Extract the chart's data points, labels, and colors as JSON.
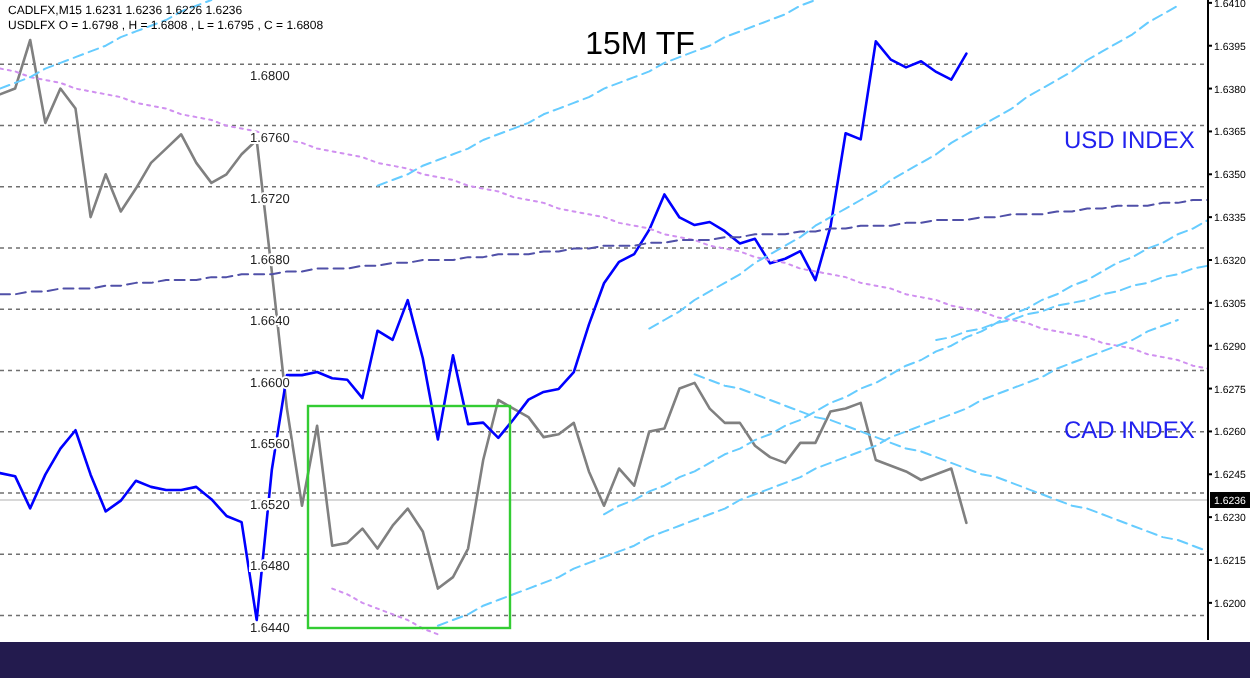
{
  "chart_data": {
    "type": "line",
    "title": "15M TF",
    "annotations": [
      "CADLFX,M15  1.6231 1.6236 1.6226 1.6236",
      "USDLFX O = 1.6798 , H = 1.6808 , L = 1.6795 , C = 1.6808",
      "USD INDEX",
      "CAD INDEX"
    ],
    "categories": [
      null,
      null,
      null,
      null,
      null,
      null,
      null,
      null,
      null,
      null,
      null,
      null,
      null,
      null,
      null,
      null,
      null,
      null,
      null,
      null,
      null,
      null,
      null,
      null,
      null,
      null,
      null,
      null,
      null,
      null,
      null,
      null,
      null,
      null,
      null,
      null,
      null,
      null,
      null,
      null,
      null,
      null,
      null,
      null,
      null,
      null,
      null,
      null,
      null,
      null,
      null,
      null,
      null,
      null,
      null,
      null,
      null,
      null,
      null,
      null,
      null,
      null,
      null,
      null,
      null,
      null,
      null,
      null,
      null,
      null,
      null,
      null,
      null,
      null,
      null,
      null,
      null,
      null,
      null,
      null,
      null
    ],
    "ylim": [
      1.6424,
      1.6842
    ],
    "yticks": [
      {
        "value": 1.644,
        "label": "1.6440"
      },
      {
        "value": 1.648,
        "label": "1.6480"
      },
      {
        "value": 1.652,
        "label": "1.6520"
      },
      {
        "value": 1.656,
        "label": "1.6560"
      },
      {
        "value": 1.66,
        "label": "1.6600"
      },
      {
        "value": 1.664,
        "label": "1.6640"
      },
      {
        "value": 1.668,
        "label": "1.6680"
      },
      {
        "value": 1.672,
        "label": "1.6720"
      },
      {
        "value": 1.676,
        "label": "1.6760"
      },
      {
        "value": 1.68,
        "label": "1.6800"
      }
    ],
    "y2lim": [
      1.6187,
      1.6411
    ],
    "y2ticks": [
      {
        "value": 1.62,
        "label": "1.6200"
      },
      {
        "value": 1.6215,
        "label": "1.6215"
      },
      {
        "value": 1.623,
        "label": "1.6230"
      },
      {
        "value": 1.6245,
        "label": "1.6245"
      },
      {
        "value": 1.626,
        "label": "1.6260"
      },
      {
        "value": 1.6275,
        "label": "1.6275"
      },
      {
        "value": 1.629,
        "label": "1.6290"
      },
      {
        "value": 1.6305,
        "label": "1.6305"
      },
      {
        "value": 1.632,
        "label": "1.6320"
      },
      {
        "value": 1.6335,
        "label": "1.6335"
      },
      {
        "value": 1.635,
        "label": "1.6350"
      },
      {
        "value": 1.6365,
        "label": "1.6365"
      },
      {
        "value": 1.638,
        "label": "1.6380"
      },
      {
        "value": 1.6395,
        "label": "1.6395"
      },
      {
        "value": 1.641,
        "label": "1.6410"
      }
    ],
    "grid": "y",
    "marker": "none",
    "ref_lines": [
      {
        "axis": "y2",
        "value": 1.6236,
        "label": "1.6236",
        "color": "#d8d8d8"
      }
    ],
    "series": [
      {
        "color": "#808080",
        "axis": "y2",
        "values": [
          1.6378,
          1.638,
          1.6397,
          1.6368,
          1.638,
          1.6373,
          1.6335,
          1.635,
          1.6337,
          1.6345,
          1.6354,
          1.6359,
          1.6364,
          1.6354,
          1.6347,
          1.635,
          1.6357,
          1.6362,
          1.6316,
          1.6268,
          1.6234,
          1.6262,
          1.622,
          1.6221,
          1.6226,
          1.6219,
          1.6227,
          1.6233,
          1.6225,
          1.6205,
          1.6209,
          1.6219,
          1.625,
          1.6271,
          1.6268,
          1.6265,
          1.6258,
          1.6259,
          1.6263,
          1.6246,
          1.6234,
          1.6247,
          1.6241,
          1.626,
          1.6261,
          1.6275,
          1.6277,
          1.6268,
          1.6263,
          1.6263,
          1.6255,
          1.6251,
          1.6249,
          1.6256,
          1.6256,
          1.6267,
          1.6268,
          1.627,
          1.625,
          1.6248,
          1.6246,
          1.6243,
          1.6245,
          1.6247,
          1.6228,
          null,
          null,
          null,
          null,
          null,
          null,
          null,
          null,
          null,
          null,
          null,
          null,
          null,
          null,
          null,
          null
        ]
      },
      {
        "color": "#0000ff",
        "axis": "y",
        "values": [
          1.6533,
          1.6531,
          1.651,
          1.6532,
          1.6549,
          1.6561,
          1.6532,
          1.6508,
          1.6515,
          1.6528,
          1.6524,
          1.6522,
          1.6522,
          1.6524,
          1.6516,
          1.6505,
          1.6501,
          1.6437,
          1.6535,
          1.6597,
          1.6597,
          1.6599,
          1.6595,
          1.6594,
          1.6582,
          1.6626,
          1.662,
          1.6646,
          1.6608,
          1.6555,
          1.661,
          1.6565,
          1.6566,
          1.6556,
          1.6568,
          1.6581,
          1.6586,
          1.6588,
          1.6599,
          1.663,
          1.6657,
          1.6671,
          1.6676,
          1.6692,
          1.6715,
          1.67,
          1.6695,
          1.6697,
          1.6691,
          1.6683,
          1.6686,
          1.667,
          1.6673,
          1.6678,
          1.6659,
          1.6694,
          1.6755,
          1.6751,
          1.6815,
          1.6803,
          1.6798,
          1.6802,
          1.6795,
          1.679,
          1.6807,
          null,
          null,
          null,
          null,
          null,
          null,
          null,
          null,
          null,
          null,
          null,
          null,
          null,
          null,
          null,
          null
        ]
      },
      {
        "color": "#d090f0",
        "axis": "y2",
        "line_style": "dotted",
        "values": [
          1.6387,
          1.6386,
          1.6384,
          1.6383,
          1.6382,
          1.638,
          1.6379,
          1.6378,
          1.6377,
          1.6375,
          1.6374,
          1.6373,
          1.6371,
          1.637,
          1.6369,
          1.6367,
          1.6366,
          1.6365,
          1.6363,
          1.6362,
          1.6361,
          1.6359,
          1.6358,
          1.6357,
          1.6356,
          1.6354,
          1.6353,
          1.6352,
          1.635,
          1.6349,
          1.6348,
          1.6346,
          1.6345,
          1.6344,
          1.6342,
          1.6341,
          1.634,
          1.6338,
          1.6337,
          1.6336,
          1.6335,
          1.6333,
          1.6332,
          1.6331,
          1.6329,
          1.6328,
          1.6327,
          1.6325,
          1.6324,
          1.6323,
          1.6321,
          1.632,
          1.6319,
          1.6317,
          1.6316,
          1.6315,
          1.6314,
          1.6312,
          1.6311,
          1.631,
          1.6308,
          1.6307,
          1.6306,
          1.6304,
          1.6303,
          1.6302,
          1.63,
          1.6299,
          1.6298,
          1.6296,
          1.6295,
          1.6294,
          1.6293,
          1.6291,
          1.629,
          1.6289,
          1.6287,
          1.6286,
          1.6285,
          1.6283,
          1.6282
        ]
      },
      {
        "color": "#d090f0",
        "axis": "y2",
        "line_style": "dotted",
        "values": [
          null,
          null,
          null,
          null,
          null,
          null,
          null,
          null,
          null,
          null,
          null,
          null,
          null,
          null,
          null,
          null,
          null,
          null,
          null,
          null,
          null,
          null,
          1.6205,
          1.6203,
          1.62,
          1.6198,
          1.6196,
          1.6194,
          1.6191,
          1.6189,
          null,
          null,
          null,
          null,
          null,
          null,
          null,
          null,
          null,
          null,
          null,
          null,
          null,
          null,
          null,
          null,
          null,
          null,
          null,
          null,
          null,
          null,
          null,
          null,
          null,
          null,
          null,
          null,
          null,
          null,
          null,
          null,
          null,
          null,
          null,
          null,
          null,
          null,
          null,
          null,
          null,
          null,
          null,
          null,
          null,
          null,
          null,
          null,
          null,
          null,
          null
        ]
      },
      {
        "color": "#5050a8",
        "axis": "y2",
        "line_style": "dashed",
        "values": [
          1.6308,
          1.6308,
          1.6309,
          1.6309,
          1.631,
          1.631,
          1.631,
          1.6311,
          1.6311,
          1.6312,
          1.6312,
          1.6313,
          1.6313,
          1.6313,
          1.6314,
          1.6314,
          1.6315,
          1.6315,
          1.6315,
          1.6316,
          1.6316,
          1.6317,
          1.6317,
          1.6317,
          1.6318,
          1.6318,
          1.6319,
          1.6319,
          1.632,
          1.632,
          1.632,
          1.6321,
          1.6321,
          1.6322,
          1.6322,
          1.6322,
          1.6323,
          1.6323,
          1.6324,
          1.6324,
          1.6325,
          1.6325,
          1.6325,
          1.6326,
          1.6326,
          1.6327,
          1.6327,
          1.6327,
          1.6328,
          1.6328,
          1.6329,
          1.6329,
          1.6329,
          1.633,
          1.633,
          1.6331,
          1.6331,
          1.6332,
          1.6332,
          1.6332,
          1.6333,
          1.6333,
          1.6334,
          1.6334,
          1.6334,
          1.6335,
          1.6335,
          1.6336,
          1.6336,
          1.6336,
          1.6337,
          1.6337,
          1.6338,
          1.6338,
          1.6339,
          1.6339,
          1.6339,
          1.634,
          1.634,
          1.6341,
          1.6341
        ]
      },
      {
        "color": "#66ccff",
        "axis": "y2",
        "line_style": "dashed",
        "values": [
          1.638,
          1.6382,
          1.6384,
          1.6387,
          1.6389,
          1.6391,
          1.6393,
          1.6395,
          1.6398,
          1.64,
          1.6402,
          1.6404,
          1.6407,
          1.6409,
          1.6411,
          null,
          null,
          null,
          null,
          null,
          null,
          null,
          null,
          null,
          null,
          null,
          null,
          null,
          null,
          null,
          null,
          null,
          null,
          null,
          null,
          null,
          null,
          null,
          null,
          null,
          null,
          null,
          null,
          null,
          null,
          null,
          null,
          null,
          null,
          null,
          null,
          null,
          null,
          null,
          null,
          null,
          null,
          null,
          null,
          null,
          null,
          null,
          null,
          null,
          null,
          null,
          null,
          null,
          null,
          null,
          null,
          null,
          null,
          null,
          null,
          null,
          null,
          null,
          null,
          null,
          null
        ]
      },
      {
        "color": "#66ccff",
        "axis": "y2",
        "line_style": "dashed",
        "values": [
          null,
          null,
          null,
          null,
          null,
          null,
          null,
          null,
          null,
          null,
          null,
          null,
          null,
          null,
          null,
          null,
          null,
          null,
          null,
          null,
          null,
          null,
          null,
          null,
          null,
          1.6346,
          1.6348,
          1.635,
          1.6353,
          1.6355,
          1.6357,
          1.6359,
          1.6362,
          1.6364,
          1.6366,
          1.6368,
          1.6371,
          1.6373,
          1.6375,
          1.6377,
          1.638,
          1.6382,
          1.6384,
          1.6386,
          1.6389,
          1.6391,
          1.6393,
          1.6395,
          1.6398,
          1.64,
          1.6402,
          1.6404,
          1.6406,
          1.6409,
          1.6411,
          null,
          null,
          null,
          null,
          null,
          null,
          null,
          null,
          null,
          null,
          null,
          null,
          null,
          null,
          null,
          null,
          null,
          null,
          null,
          null,
          null,
          null,
          null,
          null,
          null,
          null
        ]
      },
      {
        "color": "#66ccff",
        "axis": "y2",
        "line_style": "dashed",
        "values": [
          null,
          null,
          null,
          null,
          null,
          null,
          null,
          null,
          null,
          null,
          null,
          null,
          null,
          null,
          null,
          null,
          null,
          null,
          null,
          null,
          null,
          null,
          null,
          null,
          null,
          null,
          null,
          null,
          null,
          1.6192,
          1.6194,
          1.6196,
          1.6199,
          1.6201,
          1.6203,
          1.6205,
          1.6207,
          1.6209,
          1.6212,
          1.6214,
          1.6216,
          1.6218,
          1.622,
          1.6223,
          1.6225,
          1.6227,
          1.6229,
          1.6231,
          1.6233,
          1.6236,
          1.6238,
          1.624,
          1.6242,
          1.6244,
          1.6247,
          1.6249,
          1.6251,
          1.6253,
          1.6255,
          1.6258,
          1.626,
          1.6262,
          1.6264,
          1.6266,
          1.6268,
          1.6271,
          1.6273,
          1.6275,
          1.6277,
          1.6279,
          1.6282,
          1.6284,
          1.6286,
          1.6288,
          1.629,
          1.6292,
          1.6295,
          1.6297,
          1.6299,
          null,
          null
        ]
      },
      {
        "color": "#66ccff",
        "axis": "y2",
        "line_style": "dashed",
        "values": [
          null,
          null,
          null,
          null,
          null,
          null,
          null,
          null,
          null,
          null,
          null,
          null,
          null,
          null,
          null,
          null,
          null,
          null,
          null,
          null,
          null,
          null,
          null,
          null,
          null,
          null,
          null,
          null,
          null,
          null,
          null,
          null,
          null,
          null,
          null,
          null,
          null,
          null,
          null,
          null,
          1.6231,
          1.6234,
          1.6236,
          1.6239,
          1.6241,
          1.6244,
          1.6246,
          1.6249,
          1.6252,
          1.6254,
          1.6257,
          1.6259,
          1.6262,
          1.6264,
          1.6267,
          1.627,
          1.6272,
          1.6275,
          1.6277,
          1.628,
          1.6283,
          1.6285,
          1.6288,
          1.629,
          1.6293,
          1.6295,
          1.6298,
          1.6301,
          1.6303,
          1.6306,
          1.6308,
          1.6311,
          1.6313,
          1.6316,
          1.6319,
          1.6321,
          1.6324,
          1.6326,
          1.6329,
          1.6331,
          1.6334
        ]
      },
      {
        "color": "#66ccff",
        "axis": "y2",
        "line_style": "dashed",
        "values": [
          null,
          null,
          null,
          null,
          null,
          null,
          null,
          null,
          null,
          null,
          null,
          null,
          null,
          null,
          null,
          null,
          null,
          null,
          null,
          null,
          null,
          null,
          null,
          null,
          null,
          null,
          null,
          null,
          null,
          null,
          null,
          null,
          null,
          null,
          null,
          null,
          null,
          null,
          null,
          null,
          null,
          null,
          null,
          1.6296,
          1.6299,
          1.6302,
          1.6306,
          1.6309,
          1.6312,
          1.6315,
          1.6319,
          1.6322,
          1.6325,
          1.6328,
          1.6332,
          1.6335,
          1.6338,
          1.6341,
          1.6344,
          1.6348,
          1.6351,
          1.6354,
          1.6357,
          1.6361,
          1.6364,
          1.6367,
          1.637,
          1.6373,
          1.6377,
          1.638,
          1.6383,
          1.6386,
          1.639,
          1.6393,
          1.6396,
          1.6399,
          1.6403,
          1.6406,
          1.6409,
          null,
          null
        ]
      },
      {
        "color": "#66ccff",
        "axis": "y2",
        "line_style": "dashed",
        "values": [
          null,
          null,
          null,
          null,
          null,
          null,
          null,
          null,
          null,
          null,
          null,
          null,
          null,
          null,
          null,
          null,
          null,
          null,
          null,
          null,
          null,
          null,
          null,
          null,
          null,
          null,
          null,
          null,
          null,
          null,
          null,
          null,
          null,
          null,
          null,
          null,
          null,
          null,
          null,
          null,
          null,
          null,
          null,
          null,
          null,
          null,
          null,
          null,
          null,
          null,
          null,
          null,
          null,
          null,
          null,
          null,
          null,
          null,
          null,
          null,
          null,
          null,
          1.6292,
          1.6293,
          1.6295,
          1.6296,
          1.6298,
          1.6299,
          1.6301,
          1.6302,
          1.6304,
          1.6305,
          1.6306,
          1.6308,
          1.6309,
          1.6311,
          1.6312,
          1.6314,
          1.6315,
          1.6317,
          1.6318
        ]
      },
      {
        "color": "#66ccff",
        "axis": "y2",
        "line_style": "dashed",
        "values": [
          null,
          null,
          null,
          null,
          null,
          null,
          null,
          null,
          null,
          null,
          null,
          null,
          null,
          null,
          null,
          null,
          null,
          null,
          null,
          null,
          null,
          null,
          null,
          null,
          null,
          null,
          null,
          null,
          null,
          null,
          null,
          null,
          null,
          null,
          null,
          null,
          null,
          null,
          null,
          null,
          null,
          null,
          null,
          null,
          null,
          null,
          1.628,
          1.6278,
          1.6276,
          1.6275,
          1.6273,
          1.6271,
          1.6269,
          1.6267,
          1.6265,
          1.6264,
          1.6262,
          1.626,
          1.6258,
          1.6256,
          1.6254,
          1.6253,
          1.6251,
          1.6249,
          1.6247,
          1.6245,
          1.6244,
          1.6242,
          1.624,
          1.6238,
          1.6236,
          1.6234,
          1.6233,
          1.6231,
          1.6229,
          1.6227,
          1.6225,
          1.6223,
          1.6222,
          1.622,
          1.6218
        ]
      }
    ]
  }
}
